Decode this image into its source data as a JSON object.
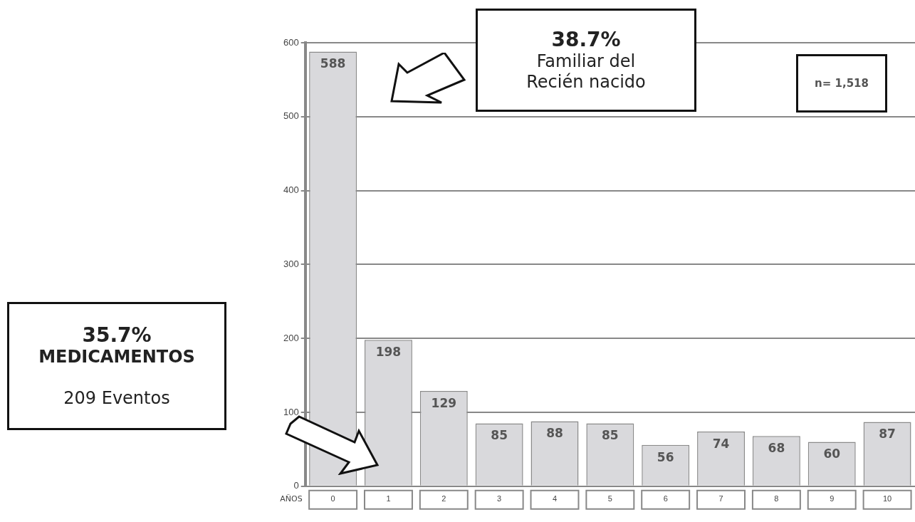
{
  "chart_data": {
    "type": "bar",
    "categories": [
      "0",
      "1",
      "2",
      "3",
      "4",
      "5",
      "6",
      "7",
      "8",
      "9",
      "10"
    ],
    "values": [
      588,
      198,
      129,
      85,
      88,
      85,
      56,
      74,
      68,
      60,
      87
    ],
    "color": "#d9d9dc",
    "xlabel": "AÑOS",
    "ylim": [
      0,
      600
    ],
    "yticks": [
      0,
      100,
      200,
      300,
      400,
      500,
      600
    ],
    "grid": "y",
    "legend": false,
    "data_labels": true,
    "annotations": [
      "38.7%\nFamiliar del\nRecién nacido",
      "n= 1,518",
      "35.7%\nMEDICAMENTOS\n\n209 Eventos"
    ]
  }
}
